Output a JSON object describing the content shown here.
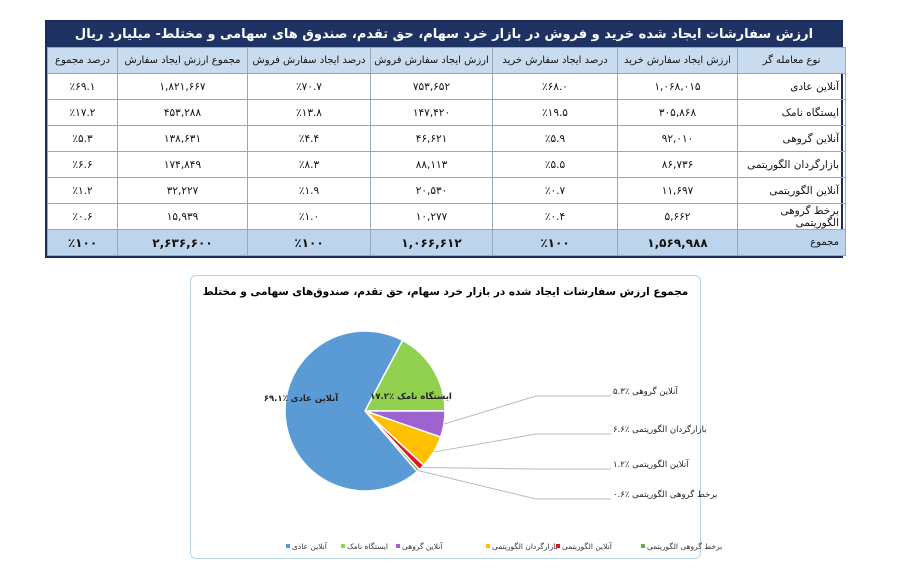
{
  "table": {
    "title": "ارزش سفارشات ایجاد شده خرید و فروش در بازار خرد سهام، حق تقدم، صندوق های سهامی و مختلط- میلیارد ریال",
    "headers": [
      "نوع معامله گر",
      "ارزش ایجاد سفارش خرید",
      "درصد ایجاد سفارش خرید",
      "ارزش ایجاد سفارش فروش",
      "درصد ایجاد سفارش فروش",
      "مجموع ارزش ایجاد سفارش",
      "درصد مجموع"
    ],
    "rows": [
      [
        "آنلاین عادی",
        "۱,۰۶۸,۰۱۵",
        "٪۶۸.۰",
        "۷۵۳,۶۵۲",
        "٪۷۰.۷",
        "۱,۸۲۱,۶۶۷",
        "٪۶۹.۱"
      ],
      [
        "ایستگاه نامک",
        "۳۰۵,۸۶۸",
        "٪۱۹.۵",
        "۱۴۷,۴۲۰",
        "٪۱۳.۸",
        "۴۵۳,۲۸۸",
        "٪۱۷.۲"
      ],
      [
        "آنلاین گروهی",
        "۹۲,۰۱۰",
        "٪۵.۹",
        "۴۶,۶۲۱",
        "٪۴.۴",
        "۱۳۸,۶۳۱",
        "٪۵.۳"
      ],
      [
        "بازارگردان الگوریتمی",
        "۸۶,۷۳۶",
        "٪۵.۵",
        "۸۸,۱۱۳",
        "٪۸.۳",
        "۱۷۴,۸۴۹",
        "٪۶.۶"
      ],
      [
        "آنلاین الگوریتمی",
        "۱۱,۶۹۷",
        "٪۰.۷",
        "۲۰,۵۳۰",
        "٪۱.۹",
        "۳۲,۲۲۷",
        "٪۱.۲"
      ],
      [
        "برخط گروهی الگوریتمی",
        "۵,۶۶۲",
        "٪۰.۴",
        "۱۰,۲۷۷",
        "٪۱.۰",
        "۱۵,۹۳۹",
        "٪۰.۶"
      ]
    ],
    "total": [
      "مجموع",
      "۱,۵۶۹,۹۸۸",
      "٪۱۰۰",
      "۱,۰۶۶,۶۱۲",
      "٪۱۰۰",
      "۲,۶۳۶,۶۰۰",
      "٪۱۰۰"
    ]
  },
  "chart_data": {
    "type": "pie",
    "title": "مجموع ارزش سفارشات ایجاد شده در بازار خرد سهام، حق تقدم، صندوق‌های سهامی و مختلط",
    "legend_position": "bottom",
    "slices": [
      {
        "name": "آنلاین عادی",
        "value": 69.1,
        "label": "آنلاین عادی ٪۶۹.۱",
        "color": "#5b9bd5"
      },
      {
        "name": "ایستگاه نامک",
        "value": 17.2,
        "label": "ایستگاه نامک ٪۱۷.۲",
        "color": "#92d050"
      },
      {
        "name": "آنلاین گروهی",
        "value": 5.3,
        "label": "آنلاین گروهی ٪۵.۳",
        "color": "#9e63d1"
      },
      {
        "name": "بازارگردان الگوریتمی",
        "value": 6.6,
        "label": "بازارگردان الگوریتمی ٪۶.۶",
        "color": "#ffc000"
      },
      {
        "name": "آنلاین الگوریتمی",
        "value": 1.2,
        "label": "آنلاین الگوریتمی ٪۱.۲",
        "color": "#e0141e"
      },
      {
        "name": "برخط گروهی الگوریتمی",
        "value": 0.6,
        "label": "برخط گروهی الگوریتمی ٪۰.۶",
        "color": "#70ad47"
      }
    ]
  }
}
